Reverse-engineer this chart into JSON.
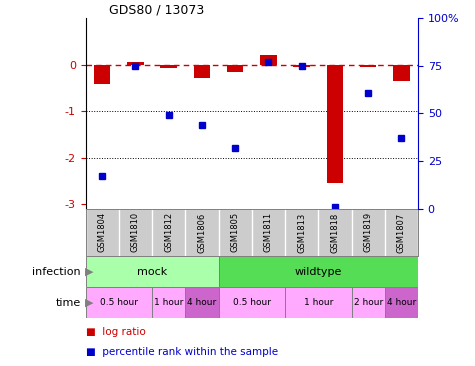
{
  "title": "GDS80 / 13073",
  "samples": [
    "GSM1804",
    "GSM1810",
    "GSM1812",
    "GSM1806",
    "GSM1805",
    "GSM1811",
    "GSM1813",
    "GSM1818",
    "GSM1819",
    "GSM1807"
  ],
  "log_ratio": [
    -0.42,
    0.06,
    -0.06,
    -0.28,
    -0.15,
    0.22,
    -0.04,
    -2.55,
    -0.04,
    -0.35
  ],
  "percentile": [
    17,
    75,
    49,
    44,
    32,
    77,
    75,
    1,
    61,
    37
  ],
  "ylim_left": [
    -3.1,
    1.0
  ],
  "ylim_right": [
    0,
    100
  ],
  "infection_groups": [
    {
      "label": "mock",
      "start": 0,
      "end": 4,
      "color": "#AAFFAA"
    },
    {
      "label": "wildtype",
      "start": 4,
      "end": 10,
      "color": "#55DD55"
    }
  ],
  "time_groups": [
    {
      "label": "0.5 hour",
      "start": 0,
      "end": 2,
      "color": "#FFAAFF"
    },
    {
      "label": "1 hour",
      "start": 2,
      "end": 3,
      "color": "#FFAAFF"
    },
    {
      "label": "4 hour",
      "start": 3,
      "end": 4,
      "color": "#CC66CC"
    },
    {
      "label": "0.5 hour",
      "start": 4,
      "end": 6,
      "color": "#FFAAFF"
    },
    {
      "label": "1 hour",
      "start": 6,
      "end": 8,
      "color": "#FFAAFF"
    },
    {
      "label": "2 hour",
      "start": 8,
      "end": 9,
      "color": "#FFAAFF"
    },
    {
      "label": "4 hour",
      "start": 9,
      "end": 10,
      "color": "#CC66CC"
    }
  ],
  "bar_color": "#CC0000",
  "dot_color": "#0000CC",
  "hline_color": "#CC0000",
  "yticks_left": [
    0,
    -1,
    -2,
    -3
  ],
  "ytick_labels_left": [
    "0",
    "-1",
    "-2",
    "-3"
  ],
  "yticks_right": [
    0,
    25,
    50,
    75,
    100
  ],
  "ytick_labels_right": [
    "0",
    "25",
    "50",
    "75",
    "100%"
  ],
  "legend_items": [
    {
      "label": "log ratio",
      "color": "#CC0000"
    },
    {
      "label": "percentile rank within the sample",
      "color": "#0000CC"
    }
  ],
  "left_label_color": "#CC0000",
  "right_label_color": "#0000CC",
  "sample_bg_color": "#CCCCCC",
  "bar_width": 0.5
}
